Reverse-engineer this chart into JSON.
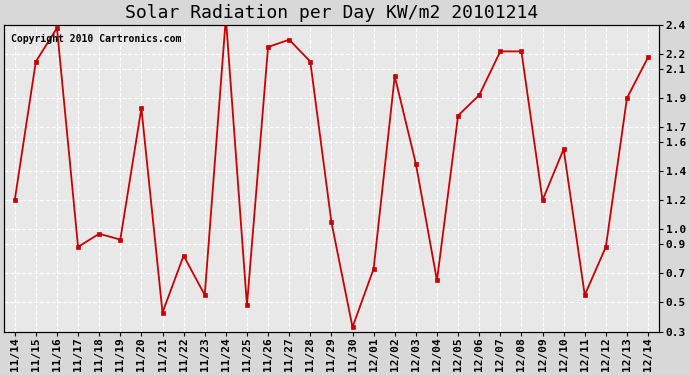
{
  "title": "Solar Radiation per Day KW/m2 20101214",
  "copyright_text": "Copyright 2010 Cartronics.com",
  "x_labels": [
    "11/14",
    "11/15",
    "11/16",
    "11/17",
    "11/18",
    "11/19",
    "11/20",
    "11/21",
    "11/22",
    "11/23",
    "11/24",
    "11/25",
    "11/26",
    "11/27",
    "11/28",
    "11/29",
    "11/30",
    "12/01",
    "12/02",
    "12/03",
    "12/04",
    "12/05",
    "12/06",
    "12/07",
    "12/08",
    "12/09",
    "12/10",
    "12/11",
    "12/12",
    "12/13",
    "12/14"
  ],
  "y_values": [
    1.2,
    2.15,
    2.38,
    0.88,
    0.97,
    0.93,
    1.83,
    0.43,
    0.82,
    0.55,
    2.45,
    0.48,
    2.25,
    2.3,
    2.15,
    1.05,
    0.33,
    0.73,
    2.05,
    1.45,
    0.65,
    1.78,
    1.92,
    2.22,
    2.22,
    1.2,
    1.55,
    0.55,
    0.88,
    1.9,
    2.18
  ],
  "line_color": "#cc0000",
  "marker": "s",
  "marker_size": 2.5,
  "line_width": 1.3,
  "ylim": [
    0.3,
    2.4
  ],
  "right_yticks": [
    0.3,
    0.5,
    0.7,
    0.9,
    1.0,
    1.2,
    1.4,
    1.6,
    1.7,
    1.9,
    2.1,
    2.2,
    2.4
  ],
  "right_ytick_labels": [
    "0.3",
    "0.5",
    "0.7",
    "0.9",
    "1.0",
    "1.2",
    "1.4",
    "1.6",
    "1.7",
    "1.9",
    "2.1",
    "2.2",
    "2.4"
  ],
  "background_color": "#d8d8d8",
  "plot_bg_color": "#e8e8e8",
  "grid_color": "#ffffff",
  "title_fontsize": 13,
  "tick_fontsize": 8,
  "copyright_fontsize": 7
}
